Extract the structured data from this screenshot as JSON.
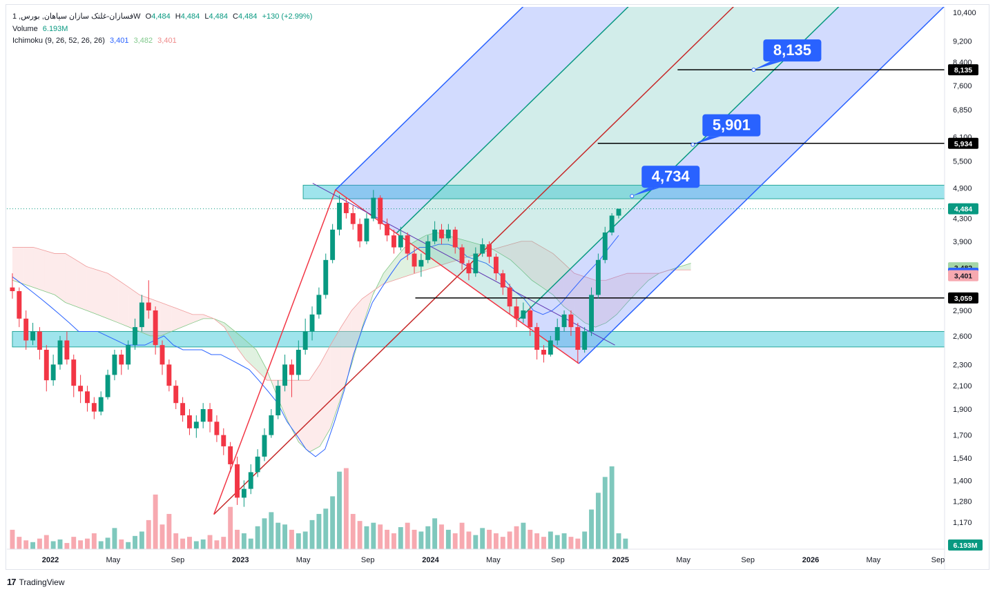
{
  "header": {
    "symbol_line": "1 ,فسازان-غلتک سازان سپاهان, بورس",
    "symbol_suffix": "W",
    "open_label": "O",
    "open": "4,484",
    "high_label": "H",
    "high": "4,484",
    "low_label": "L",
    "low": "4,484",
    "close_label": "C",
    "close": "4,484",
    "change": "+130 (+2.99%)",
    "volume_label": "Volume",
    "volume_value": "6.193M",
    "ichimoku_label": "Ichimoku (9, 26, 52, 26, 26)",
    "ichimoku_v1": "3,401",
    "ichimoku_v2": "3,482",
    "ichimoku_v3": "3,401"
  },
  "footer": {
    "brand": "TradingView",
    "logo": "17"
  },
  "colors": {
    "up": "#089981",
    "down": "#f23645",
    "vol_up": "#7fc8bd",
    "vol_down": "#f7a9b0",
    "kijun": "#2962ff",
    "cloud_green": "#a5d6a7",
    "cloud_red": "#f8c6c6",
    "zone": "#7fdbe6",
    "pitch_blue": "#2962ff",
    "pitch_green": "#089981",
    "pitch_red": "#c62828"
  },
  "chart_data": {
    "type": "candlestick",
    "scale": "log",
    "y_ticks": [
      10400,
      9200,
      8400,
      7600,
      6850,
      6100,
      5500,
      4900,
      4300,
      3900,
      2900,
      2600,
      2300,
      2100,
      1900,
      1700,
      1540,
      1400,
      1280,
      1170
    ],
    "x_ticks": [
      {
        "label": "2022",
        "t": 2022.0
      },
      {
        "label": "May",
        "t": 2022.33
      },
      {
        "label": "Sep",
        "t": 2022.67
      },
      {
        "label": "2023",
        "t": 2023.0
      },
      {
        "label": "May",
        "t": 2023.33
      },
      {
        "label": "Sep",
        "t": 2023.67
      },
      {
        "label": "2024",
        "t": 2024.0
      },
      {
        "label": "May",
        "t": 2024.33
      },
      {
        "label": "Sep",
        "t": 2024.67
      },
      {
        "label": "2025",
        "t": 2025.0
      },
      {
        "label": "May",
        "t": 2025.33
      },
      {
        "label": "Sep",
        "t": 2025.67
      },
      {
        "label": "2026",
        "t": 2026.0
      },
      {
        "label": "May",
        "t": 2026.33
      },
      {
        "label": "Sep",
        "t": 2026.67
      }
    ],
    "price_badges": [
      {
        "label": "8,135",
        "value": 8135,
        "style": "dark"
      },
      {
        "label": "5,934",
        "value": 5934,
        "style": "dark"
      },
      {
        "label": "4,484",
        "value": 4484,
        "style": "green"
      },
      {
        "label": "3,482",
        "value": 3482,
        "style": "lightgreen"
      },
      {
        "label": "3,401",
        "value": 3401,
        "style": "blue"
      },
      {
        "label": "3,401",
        "value": 3365,
        "style": "pink"
      },
      {
        "label": "3,059",
        "value": 3059,
        "style": "dark"
      }
    ],
    "volume_badge": "6.193M",
    "targets": [
      {
        "label": "8,135",
        "value": 8135,
        "t": 2025.7
      },
      {
        "label": "5,901",
        "value": 5901,
        "t": 2025.38
      },
      {
        "label": "4,734",
        "value": 4734,
        "t": 2025.06
      }
    ],
    "h_lines": [
      {
        "value": 8135,
        "t_start": 2025.3
      },
      {
        "value": 5934,
        "t_start": 2024.88
      },
      {
        "value": 3059,
        "t_start": 2023.92
      }
    ],
    "zones": [
      {
        "low": 4680,
        "high": 4960,
        "t_start": 2023.33
      },
      {
        "low": 2480,
        "high": 2650,
        "t_start": 2021.8
      }
    ],
    "pitchfork": {
      "a": {
        "t": 2022.86,
        "p": 1210
      },
      "b": {
        "t": 2023.5,
        "p": 4860
      },
      "c": {
        "t": 2024.78,
        "p": 2310
      }
    },
    "trendline": {
      "t1": 2023.38,
      "p1": 5000,
      "t2": 2024.97,
      "p2": 2500
    },
    "candles": [
      [
        3200,
        3150,
        3400,
        3050
      ],
      [
        3150,
        2800,
        3200,
        2700
      ],
      [
        2800,
        2550,
        2900,
        2450
      ],
      [
        2550,
        2650,
        2750,
        2500
      ],
      [
        2650,
        2450,
        2700,
        2350
      ],
      [
        2450,
        2150,
        2500,
        2050
      ],
      [
        2150,
        2300,
        2400,
        2100
      ],
      [
        2300,
        2550,
        2600,
        2250
      ],
      [
        2550,
        2350,
        2650,
        2300
      ],
      [
        2350,
        2100,
        2400,
        2000
      ],
      [
        2100,
        2050,
        2200,
        1950
      ],
      [
        2050,
        1950,
        2100,
        1880
      ],
      [
        1950,
        1880,
        2000,
        1820
      ],
      [
        1880,
        2000,
        2050,
        1850
      ],
      [
        2000,
        2200,
        2250,
        1980
      ],
      [
        2200,
        2400,
        2450,
        2150
      ],
      [
        2400,
        2300,
        2450,
        2200
      ],
      [
        2300,
        2500,
        2550,
        2250
      ],
      [
        2500,
        2700,
        2800,
        2450
      ],
      [
        2700,
        3000,
        3100,
        2650
      ],
      [
        3000,
        2900,
        3300,
        2800
      ],
      [
        2900,
        2500,
        2950,
        2400
      ],
      [
        2500,
        2300,
        2550,
        2200
      ],
      [
        2300,
        2100,
        2350,
        2050
      ],
      [
        2100,
        1950,
        2150,
        1900
      ],
      [
        1950,
        1850,
        2000,
        1800
      ],
      [
        1850,
        1750,
        1900,
        1700
      ],
      [
        1750,
        1800,
        1850,
        1680
      ],
      [
        1800,
        1900,
        1950,
        1750
      ],
      [
        1900,
        1800,
        1950,
        1720
      ],
      [
        1800,
        1700,
        1850,
        1650
      ],
      [
        1700,
        1620,
        1750,
        1560
      ],
      [
        1620,
        1500,
        1650,
        1450
      ],
      [
        1500,
        1300,
        1550,
        1260
      ],
      [
        1300,
        1350,
        1400,
        1250
      ],
      [
        1350,
        1450,
        1500,
        1320
      ],
      [
        1450,
        1550,
        1600,
        1420
      ],
      [
        1550,
        1700,
        1750,
        1520
      ],
      [
        1700,
        1850,
        1900,
        1680
      ],
      [
        1850,
        2100,
        2150,
        1820
      ],
      [
        2100,
        2300,
        2400,
        2050
      ],
      [
        2300,
        2200,
        2350,
        2000
      ],
      [
        2200,
        2450,
        2550,
        2150
      ],
      [
        2450,
        2650,
        2800,
        2400
      ],
      [
        2650,
        2850,
        2950,
        2550
      ],
      [
        2850,
        3100,
        3200,
        2800
      ],
      [
        3100,
        3600,
        3700,
        3050
      ],
      [
        3600,
        4100,
        4200,
        3550
      ],
      [
        4100,
        4600,
        4750,
        4000
      ],
      [
        4600,
        4400,
        4700,
        4300
      ],
      [
        4400,
        4200,
        4550,
        4100
      ],
      [
        4200,
        3900,
        4300,
        3800
      ],
      [
        3900,
        4300,
        4400,
        3850
      ],
      [
        4300,
        4700,
        4860,
        4250
      ],
      [
        4700,
        4200,
        4750,
        4100
      ],
      [
        4200,
        4000,
        4300,
        3900
      ],
      [
        4000,
        3800,
        4100,
        3700
      ],
      [
        3800,
        4000,
        4150,
        3750
      ],
      [
        4000,
        3700,
        4050,
        3600
      ],
      [
        3700,
        3500,
        3800,
        3400
      ],
      [
        3500,
        3600,
        3700,
        3350
      ],
      [
        3600,
        3900,
        4000,
        3550
      ],
      [
        3900,
        4100,
        4250,
        3850
      ],
      [
        4100,
        3950,
        4200,
        3850
      ],
      [
        3950,
        4100,
        4200,
        3900
      ],
      [
        4100,
        3800,
        4150,
        3700
      ],
      [
        3800,
        3550,
        3850,
        3450
      ],
      [
        3550,
        3400,
        3600,
        3300
      ],
      [
        3400,
        3700,
        3800,
        3350
      ],
      [
        3700,
        3850,
        3950,
        3650
      ],
      [
        3850,
        3650,
        3900,
        3550
      ],
      [
        3650,
        3400,
        3700,
        3300
      ],
      [
        3400,
        3200,
        3450,
        3100
      ],
      [
        3200,
        2950,
        3250,
        2850
      ],
      [
        2950,
        2800,
        3050,
        2700
      ],
      [
        2800,
        2900,
        3000,
        2750
      ],
      [
        2900,
        2700,
        2950,
        2600
      ],
      [
        2700,
        2450,
        2750,
        2350
      ],
      [
        2450,
        2400,
        2500,
        2320
      ],
      [
        2400,
        2550,
        2600,
        2380
      ],
      [
        2550,
        2700,
        2800,
        2500
      ],
      [
        2700,
        2850,
        2900,
        2650
      ],
      [
        2850,
        2700,
        2900,
        2600
      ],
      [
        2700,
        2450,
        2750,
        2310
      ],
      [
        2450,
        2650,
        2700,
        2420
      ],
      [
        2650,
        3100,
        3200,
        2600
      ],
      [
        3100,
        3600,
        3700,
        3050
      ],
      [
        3600,
        4050,
        4150,
        3550
      ],
      [
        4050,
        4354,
        4400,
        4000
      ],
      [
        4354,
        4484,
        4484,
        4300
      ]
    ],
    "volumes": [
      22,
      14,
      10,
      8,
      12,
      16,
      9,
      11,
      7,
      14,
      10,
      12,
      18,
      9,
      13,
      24,
      11,
      8,
      15,
      20,
      33,
      62,
      28,
      40,
      18,
      12,
      14,
      9,
      11,
      16,
      10,
      14,
      48,
      22,
      18,
      12,
      26,
      35,
      42,
      30,
      28,
      22,
      18,
      20,
      33,
      40,
      46,
      60,
      88,
      92,
      40,
      32,
      26,
      30,
      28,
      22,
      18,
      25,
      30,
      22,
      20,
      26,
      35,
      28,
      22,
      18,
      30,
      20,
      16,
      24,
      22,
      18,
      14,
      20,
      26,
      30,
      22,
      18,
      14,
      20,
      16,
      18,
      14,
      12,
      20,
      45,
      64,
      82,
      94,
      18,
      12
    ],
    "ichimoku": {
      "kijun": [
        3350,
        3250,
        3150,
        3050,
        2950,
        2850,
        2750,
        2650,
        2650,
        2650,
        2600,
        2550,
        2500,
        2500,
        2500,
        2550,
        2600,
        2500,
        2450,
        2450,
        2450,
        2400,
        2400,
        2350,
        2300,
        2250,
        2150,
        2050,
        1950,
        1800,
        1700,
        1600,
        1550,
        1600,
        1800,
        2050,
        2400,
        2700,
        3000,
        3200,
        3400,
        3600,
        3700,
        3800,
        3800,
        3850,
        3850,
        3800,
        3650,
        3600,
        3550,
        3450,
        3300,
        3150,
        3050,
        2900,
        2850,
        2900,
        3000,
        3150,
        3300,
        3450,
        3600,
        3800,
        4000
      ],
      "cloud_a": [
        3300,
        3250,
        3200,
        3150,
        3100,
        3000,
        2950,
        2900,
        2850,
        2800,
        2750,
        2700,
        2650,
        2600,
        2600,
        2650,
        2700,
        2750,
        2800,
        2800,
        2750,
        2650,
        2550,
        2450,
        2250,
        2000,
        1800,
        1650,
        1580,
        1620,
        1750,
        2000,
        2300,
        2700,
        3100,
        3400,
        3600,
        3800,
        3900,
        4000,
        4050,
        4000,
        3950,
        3900,
        3850,
        3800,
        3700,
        3600,
        3450,
        3300,
        3200,
        3100,
        2950,
        2850,
        2750,
        2700,
        2750,
        2850,
        3000,
        3150,
        3300,
        3400,
        3450,
        3500,
        3550
      ],
      "cloud_b": [
        3800,
        3800,
        3800,
        3750,
        3700,
        3700,
        3600,
        3500,
        3450,
        3400,
        3300,
        3200,
        3100,
        3050,
        3000,
        2950,
        2900,
        2850,
        2850,
        2800,
        2700,
        2500,
        2350,
        2250,
        2150,
        2150,
        2150,
        2150,
        2150,
        2300,
        2500,
        2700,
        2900,
        3050,
        3150,
        3250,
        3300,
        3350,
        3400,
        3450,
        3500,
        3550,
        3600,
        3650,
        3700,
        3750,
        3800,
        3850,
        3900,
        3900,
        3800,
        3700,
        3550,
        3400,
        3350,
        3300,
        3300,
        3350,
        3400,
        3400,
        3400,
        3400,
        3450,
        3450,
        3450
      ]
    }
  }
}
